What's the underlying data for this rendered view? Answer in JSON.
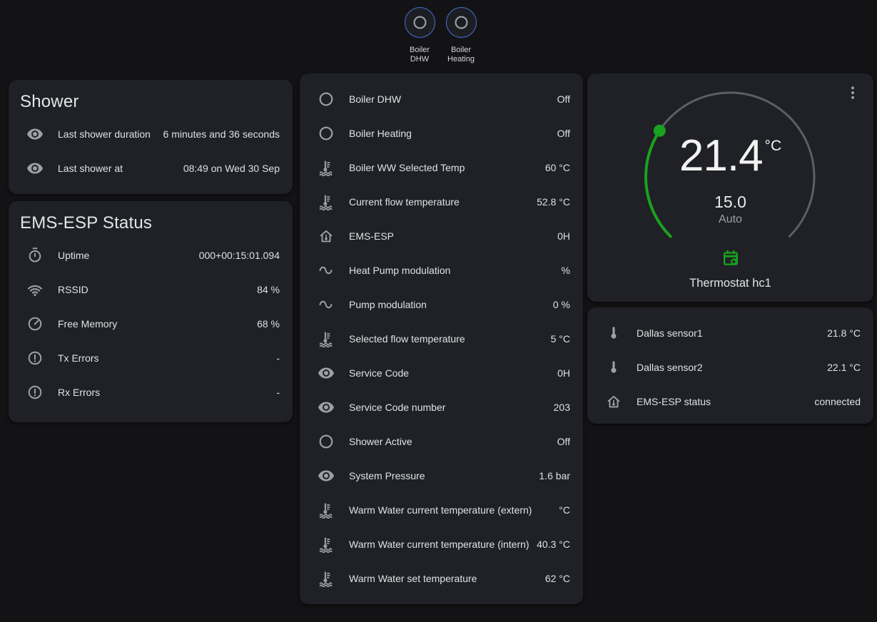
{
  "colors": {
    "page_bg": "#131316",
    "card_bg": "#1f2126",
    "accent_blue": "#4a6fd0",
    "accent_green": "#1aa21e",
    "icon_gray": "#9da0a4",
    "arc_gray": "#5c5f63"
  },
  "badges": [
    {
      "icon": "circle-outline",
      "label": "Boiler DHW"
    },
    {
      "icon": "circle-outline",
      "label": "Boiler Heating"
    }
  ],
  "cards": {
    "shower": {
      "title": "Shower",
      "rows": [
        {
          "icon": "eye",
          "name": "Last shower duration",
          "value": "6 minutes and 36 seconds"
        },
        {
          "icon": "eye",
          "name": "Last shower at",
          "value": "08:49 on Wed 30 Sep"
        }
      ]
    },
    "ems_status": {
      "title": "EMS-ESP Status",
      "rows": [
        {
          "icon": "timer",
          "name": "Uptime",
          "value": "000+00:15:01.094"
        },
        {
          "icon": "wifi",
          "name": "RSSID",
          "value": "84 %"
        },
        {
          "icon": "gauge",
          "name": "Free Memory",
          "value": "68 %"
        },
        {
          "icon": "alert-circle",
          "name": "Tx Errors",
          "value": "-"
        },
        {
          "icon": "alert-circle",
          "name": "Rx Errors",
          "value": "-"
        }
      ]
    },
    "boiler": {
      "rows": [
        {
          "icon": "circle-outline",
          "name": "Boiler DHW",
          "value": "Off"
        },
        {
          "icon": "circle-outline",
          "name": "Boiler Heating",
          "value": "Off"
        },
        {
          "icon": "coolant-temperature",
          "name": "Boiler WW Selected Temp",
          "value": "60 °C"
        },
        {
          "icon": "coolant-temperature",
          "name": "Current flow temperature",
          "value": "52.8 °C"
        },
        {
          "icon": "home-thermometer",
          "name": "EMS-ESP",
          "value": "0H"
        },
        {
          "icon": "sine-wave",
          "name": "Heat Pump modulation",
          "value": "%"
        },
        {
          "icon": "sine-wave",
          "name": "Pump modulation",
          "value": "0 %"
        },
        {
          "icon": "coolant-temperature",
          "name": "Selected flow temperature",
          "value": "5 °C"
        },
        {
          "icon": "eye",
          "name": "Service Code",
          "value": "0H"
        },
        {
          "icon": "eye",
          "name": "Service Code number",
          "value": "203"
        },
        {
          "icon": "circle-outline",
          "name": "Shower Active",
          "value": "Off"
        },
        {
          "icon": "eye",
          "name": "System Pressure",
          "value": "1.6 bar"
        },
        {
          "icon": "coolant-temperature",
          "name": "Warm Water current temperature (extern)",
          "value": "°C"
        },
        {
          "icon": "coolant-temperature",
          "name": "Warm Water current temperature (intern)",
          "value": "40.3 °C"
        },
        {
          "icon": "coolant-temperature",
          "name": "Warm Water set temperature",
          "value": "62 °C"
        }
      ]
    },
    "thermostat": {
      "current_temp": "21.4",
      "unit": "°C",
      "setpoint": "15.0",
      "mode": "Auto",
      "name": "Thermostat hc1"
    },
    "sensors": {
      "rows": [
        {
          "icon": "thermometer",
          "name": "Dallas sensor1",
          "value": "21.8 °C"
        },
        {
          "icon": "thermometer",
          "name": "Dallas sensor2",
          "value": "22.1 °C"
        },
        {
          "icon": "home-thermometer",
          "name": "EMS-ESP status",
          "value": "connected"
        }
      ]
    }
  }
}
